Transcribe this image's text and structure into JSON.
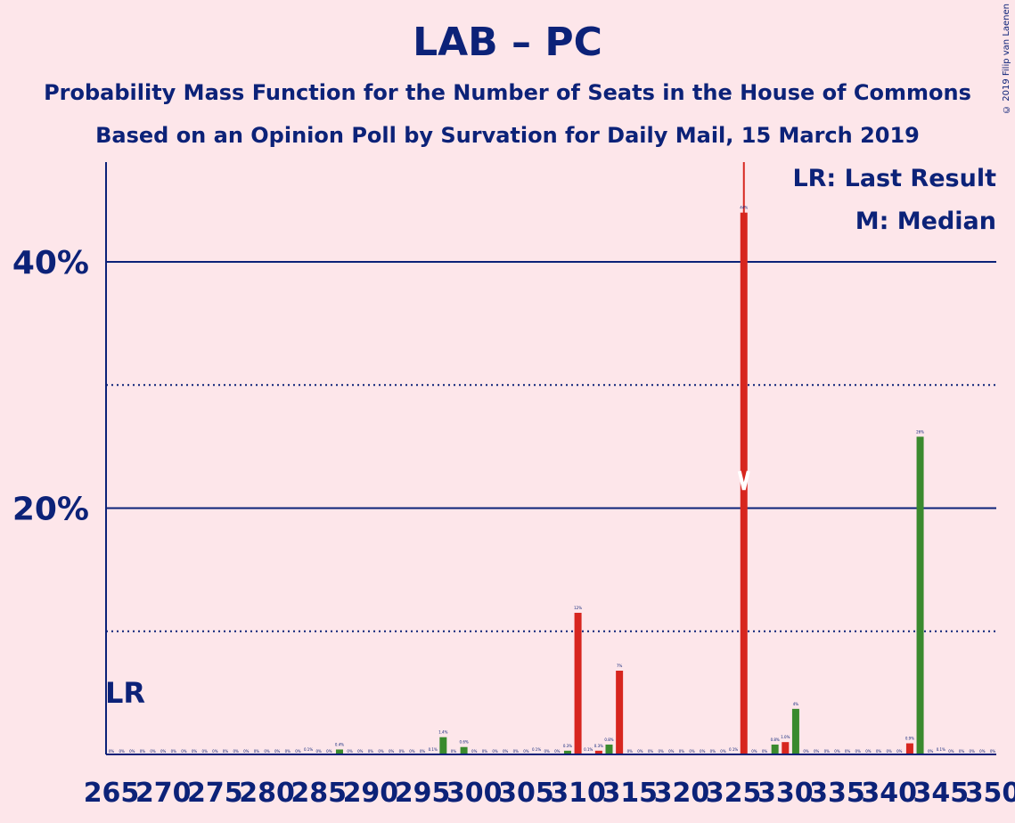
{
  "chart_data": {
    "type": "bar",
    "title": "LAB – PC",
    "subtitle_1": "Probability Mass Function for the Number of Seats in the House of Commons",
    "subtitle_2": "Based on an Opinion Poll by Survation for Daily Mail, 15 March 2019",
    "copyright": "© 2019 Filip van Laenen",
    "legend": {
      "lr": "LR: Last Result",
      "median": "M: Median",
      "placement": "top-right"
    },
    "x_tick_labels": [
      "265",
      "270",
      "275",
      "280",
      "285",
      "290",
      "295",
      "300",
      "305",
      "310",
      "315",
      "320",
      "325",
      "330",
      "335",
      "340",
      "345",
      "350"
    ],
    "y_tick_labels": [
      "20%",
      "40%"
    ],
    "ylim": [
      0,
      48
    ],
    "xlim": [
      265,
      350
    ],
    "last_result_seat": 265,
    "last_result_label": "LR",
    "median_seat": 326,
    "median_label": "M",
    "grid": {
      "solid": [
        20,
        40
      ],
      "dotted": [
        10,
        30
      ]
    },
    "colors": {
      "background": "#fde6ea",
      "text": "#0c2278",
      "red": "#d7261f",
      "green": "#3a8a2e"
    },
    "series": [
      {
        "name": "",
        "color": "red",
        "points": [
          {
            "x": 310,
            "y": 11.5,
            "label": "12%"
          },
          {
            "x": 312,
            "y": 0.3,
            "label": "0.3%"
          },
          {
            "x": 314,
            "y": 6.8,
            "label": "7%"
          },
          {
            "x": 326,
            "y": 44,
            "label": "44%"
          },
          {
            "x": 330,
            "y": 1.0,
            "label": "1.0%"
          },
          {
            "x": 342,
            "y": 0.9,
            "label": "0.9%"
          }
        ]
      },
      {
        "name": "",
        "color": "green",
        "points": [
          {
            "x": 287,
            "y": 0.4,
            "label": "0.4%"
          },
          {
            "x": 297,
            "y": 1.4,
            "label": "1.4%"
          },
          {
            "x": 299,
            "y": 0.6,
            "label": "0.6%"
          },
          {
            "x": 309,
            "y": 0.3,
            "label": "0.3%"
          },
          {
            "x": 313,
            "y": 0.8,
            "label": "0.8%"
          },
          {
            "x": 329,
            "y": 0.8,
            "label": "0.8%"
          },
          {
            "x": 331,
            "y": 3.7,
            "label": "4%"
          },
          {
            "x": 343,
            "y": 25.8,
            "label": "26%"
          }
        ]
      },
      {
        "name": "",
        "color": "none",
        "points": [
          {
            "x": 284,
            "y": 0,
            "label": "0.1%"
          },
          {
            "x": 296,
            "y": 0,
            "label": "0.1%"
          },
          {
            "x": 306,
            "y": 0,
            "label": "0.1%"
          },
          {
            "x": 311,
            "y": 0,
            "label": "0.1%"
          },
          {
            "x": 325,
            "y": 0,
            "label": "0.1%"
          },
          {
            "x": 345,
            "y": 0,
            "label": "0.1%"
          }
        ]
      }
    ]
  }
}
